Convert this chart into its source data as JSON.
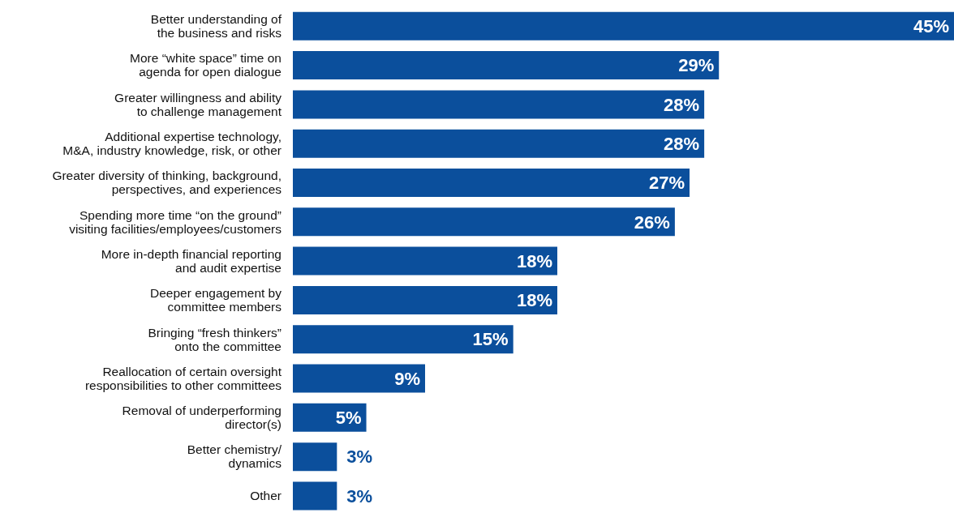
{
  "chart_data": {
    "type": "bar",
    "orientation": "horizontal",
    "categories": [
      "Better understanding of\nthe business and risks",
      "More “white space” time on\nagenda for open dialogue",
      "Greater willingness and ability\nto challenge management",
      "Additional expertise technology,\nM&A, industry knowledge, risk, or other",
      "Greater diversity of thinking, background,\nperspectives, and experiences",
      "Spending more time “on the ground”\nvisiting facilities/employees/customers",
      "More in-depth financial reporting\nand audit expertise",
      "Deeper engagement by\ncommittee members",
      "Bringing “fresh thinkers”\nonto the committee",
      "Reallocation of certain oversight\nresponsibilities to other committees",
      "Removal of underperforming\ndirector(s)",
      "Better chemistry/\ndynamics",
      "Other"
    ],
    "values": [
      45,
      29,
      28,
      28,
      27,
      26,
      18,
      18,
      15,
      9,
      5,
      3,
      3
    ],
    "value_labels": [
      "45%",
      "29%",
      "28%",
      "28%",
      "27%",
      "26%",
      "18%",
      "18%",
      "15%",
      "9%",
      "5%",
      "3%",
      "3%"
    ],
    "color": "#0b4f9c"
  }
}
